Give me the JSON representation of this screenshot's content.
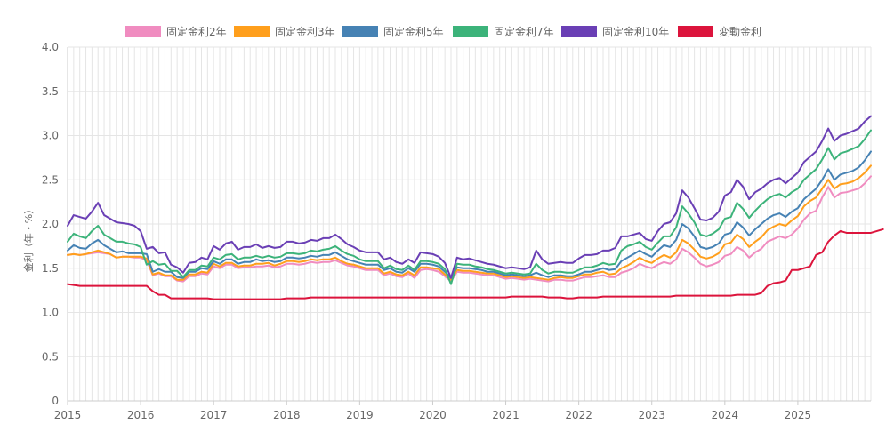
{
  "chart_data": {
    "type": "line",
    "title": "",
    "xlabel": "",
    "ylabel": "金利（年・%）",
    "ylim": [
      0,
      4.0
    ],
    "yticks": [
      "0",
      "0.5",
      "1.0",
      "1.5",
      "2.0",
      "2.5",
      "3.0",
      "3.5",
      "4.0"
    ],
    "xticks": [
      "2015",
      "2016",
      "2017",
      "2018",
      "2019",
      "2020",
      "2021",
      "2022",
      "2023",
      "2024",
      "2025"
    ],
    "x_start": "2015-01",
    "interval": "monthly",
    "grid": true,
    "legend_position": "top",
    "series": [
      {
        "name": "固定金利2年",
        "color": "#f08cc0",
        "values": [
          1.65,
          1.66,
          1.65,
          1.66,
          1.67,
          1.68,
          1.67,
          1.66,
          1.62,
          1.63,
          1.63,
          1.62,
          1.62,
          1.59,
          1.42,
          1.44,
          1.41,
          1.41,
          1.36,
          1.35,
          1.41,
          1.41,
          1.44,
          1.43,
          1.52,
          1.5,
          1.54,
          1.54,
          1.5,
          1.51,
          1.51,
          1.52,
          1.52,
          1.53,
          1.51,
          1.52,
          1.55,
          1.55,
          1.54,
          1.55,
          1.57,
          1.56,
          1.57,
          1.57,
          1.59,
          1.56,
          1.53,
          1.52,
          1.5,
          1.48,
          1.48,
          1.48,
          1.42,
          1.44,
          1.41,
          1.4,
          1.44,
          1.39,
          1.48,
          1.49,
          1.48,
          1.46,
          1.41,
          1.35,
          1.46,
          1.45,
          1.45,
          1.44,
          1.43,
          1.42,
          1.42,
          1.4,
          1.38,
          1.39,
          1.38,
          1.37,
          1.38,
          1.37,
          1.36,
          1.35,
          1.37,
          1.37,
          1.36,
          1.36,
          1.38,
          1.4,
          1.4,
          1.41,
          1.42,
          1.4,
          1.4,
          1.45,
          1.47,
          1.5,
          1.55,
          1.52,
          1.5,
          1.54,
          1.57,
          1.55,
          1.6,
          1.72,
          1.68,
          1.62,
          1.55,
          1.52,
          1.54,
          1.57,
          1.64,
          1.66,
          1.74,
          1.7,
          1.62,
          1.68,
          1.72,
          1.8,
          1.83,
          1.86,
          1.84,
          1.88,
          1.95,
          2.05,
          2.12,
          2.15,
          2.3,
          2.42,
          2.3,
          2.35,
          2.36,
          2.38,
          2.4,
          2.46,
          2.54
        ]
      },
      {
        "name": "固定金利3年",
        "color": "#ff9f1c",
        "values": [
          1.65,
          1.66,
          1.65,
          1.66,
          1.68,
          1.7,
          1.68,
          1.66,
          1.62,
          1.63,
          1.63,
          1.63,
          1.63,
          1.61,
          1.43,
          1.45,
          1.42,
          1.42,
          1.37,
          1.37,
          1.43,
          1.43,
          1.46,
          1.45,
          1.55,
          1.52,
          1.56,
          1.56,
          1.52,
          1.53,
          1.53,
          1.55,
          1.55,
          1.56,
          1.53,
          1.55,
          1.58,
          1.58,
          1.57,
          1.58,
          1.6,
          1.59,
          1.6,
          1.6,
          1.62,
          1.58,
          1.55,
          1.54,
          1.52,
          1.5,
          1.5,
          1.5,
          1.44,
          1.46,
          1.43,
          1.42,
          1.46,
          1.42,
          1.51,
          1.51,
          1.5,
          1.49,
          1.43,
          1.37,
          1.48,
          1.47,
          1.47,
          1.46,
          1.45,
          1.44,
          1.44,
          1.42,
          1.4,
          1.41,
          1.4,
          1.39,
          1.4,
          1.39,
          1.38,
          1.37,
          1.39,
          1.4,
          1.39,
          1.39,
          1.41,
          1.43,
          1.43,
          1.45,
          1.46,
          1.43,
          1.44,
          1.5,
          1.53,
          1.57,
          1.62,
          1.58,
          1.56,
          1.61,
          1.65,
          1.62,
          1.68,
          1.82,
          1.78,
          1.71,
          1.63,
          1.61,
          1.63,
          1.67,
          1.77,
          1.79,
          1.88,
          1.83,
          1.74,
          1.8,
          1.85,
          1.93,
          1.97,
          2.0,
          1.98,
          2.04,
          2.09,
          2.2,
          2.26,
          2.3,
          2.4,
          2.5,
          2.4,
          2.45,
          2.46,
          2.48,
          2.52,
          2.58,
          2.66
        ]
      },
      {
        "name": "固定金利5年",
        "color": "#4682b4",
        "values": [
          1.7,
          1.76,
          1.73,
          1.72,
          1.78,
          1.82,
          1.76,
          1.72,
          1.68,
          1.69,
          1.67,
          1.67,
          1.67,
          1.66,
          1.46,
          1.49,
          1.46,
          1.46,
          1.4,
          1.39,
          1.46,
          1.46,
          1.5,
          1.49,
          1.58,
          1.55,
          1.6,
          1.6,
          1.55,
          1.57,
          1.57,
          1.6,
          1.58,
          1.59,
          1.57,
          1.58,
          1.62,
          1.62,
          1.61,
          1.62,
          1.64,
          1.63,
          1.65,
          1.65,
          1.68,
          1.64,
          1.6,
          1.58,
          1.56,
          1.54,
          1.54,
          1.54,
          1.48,
          1.5,
          1.46,
          1.45,
          1.5,
          1.46,
          1.55,
          1.55,
          1.54,
          1.52,
          1.46,
          1.39,
          1.51,
          1.5,
          1.5,
          1.49,
          1.48,
          1.46,
          1.46,
          1.44,
          1.42,
          1.43,
          1.42,
          1.41,
          1.42,
          1.45,
          1.42,
          1.4,
          1.42,
          1.42,
          1.41,
          1.41,
          1.43,
          1.46,
          1.46,
          1.48,
          1.5,
          1.48,
          1.49,
          1.58,
          1.62,
          1.66,
          1.7,
          1.66,
          1.63,
          1.7,
          1.76,
          1.74,
          1.82,
          2.0,
          1.95,
          1.86,
          1.74,
          1.72,
          1.74,
          1.78,
          1.88,
          1.9,
          2.02,
          1.96,
          1.87,
          1.94,
          2.0,
          2.06,
          2.1,
          2.12,
          2.08,
          2.14,
          2.18,
          2.28,
          2.34,
          2.4,
          2.5,
          2.62,
          2.5,
          2.56,
          2.58,
          2.6,
          2.64,
          2.72,
          2.82
        ]
      },
      {
        "name": "固定金利7年",
        "color": "#3cb37a",
        "values": [
          1.8,
          1.89,
          1.86,
          1.84,
          1.92,
          1.98,
          1.88,
          1.84,
          1.8,
          1.8,
          1.78,
          1.77,
          1.74,
          1.54,
          1.58,
          1.54,
          1.55,
          1.47,
          1.47,
          1.4,
          1.48,
          1.48,
          1.53,
          1.52,
          1.62,
          1.6,
          1.65,
          1.66,
          1.6,
          1.62,
          1.62,
          1.64,
          1.62,
          1.64,
          1.62,
          1.63,
          1.67,
          1.67,
          1.66,
          1.67,
          1.7,
          1.69,
          1.71,
          1.72,
          1.75,
          1.7,
          1.66,
          1.64,
          1.6,
          1.58,
          1.58,
          1.58,
          1.5,
          1.53,
          1.49,
          1.48,
          1.53,
          1.48,
          1.58,
          1.58,
          1.57,
          1.55,
          1.49,
          1.32,
          1.55,
          1.54,
          1.54,
          1.52,
          1.51,
          1.49,
          1.48,
          1.46,
          1.44,
          1.45,
          1.44,
          1.43,
          1.44,
          1.55,
          1.48,
          1.44,
          1.46,
          1.46,
          1.45,
          1.45,
          1.48,
          1.51,
          1.51,
          1.53,
          1.56,
          1.54,
          1.55,
          1.7,
          1.75,
          1.77,
          1.8,
          1.74,
          1.71,
          1.79,
          1.86,
          1.86,
          1.96,
          2.2,
          2.12,
          2.02,
          1.88,
          1.86,
          1.89,
          1.94,
          2.06,
          2.08,
          2.24,
          2.17,
          2.07,
          2.15,
          2.22,
          2.28,
          2.32,
          2.34,
          2.3,
          2.36,
          2.4,
          2.5,
          2.56,
          2.62,
          2.73,
          2.86,
          2.73,
          2.8,
          2.82,
          2.85,
          2.88,
          2.96,
          3.06
        ]
      },
      {
        "name": "固定金利10年",
        "color": "#6a3fb5",
        "values": [
          1.98,
          2.1,
          2.08,
          2.06,
          2.14,
          2.24,
          2.1,
          2.06,
          2.02,
          2.01,
          2.0,
          1.98,
          1.92,
          1.72,
          1.74,
          1.67,
          1.68,
          1.54,
          1.51,
          1.45,
          1.56,
          1.57,
          1.62,
          1.6,
          1.75,
          1.71,
          1.78,
          1.8,
          1.71,
          1.74,
          1.74,
          1.77,
          1.73,
          1.75,
          1.73,
          1.74,
          1.8,
          1.8,
          1.78,
          1.79,
          1.82,
          1.81,
          1.84,
          1.84,
          1.88,
          1.83,
          1.77,
          1.74,
          1.7,
          1.68,
          1.68,
          1.68,
          1.6,
          1.62,
          1.57,
          1.55,
          1.6,
          1.56,
          1.68,
          1.67,
          1.66,
          1.63,
          1.56,
          1.39,
          1.62,
          1.6,
          1.61,
          1.59,
          1.57,
          1.55,
          1.54,
          1.52,
          1.5,
          1.51,
          1.5,
          1.49,
          1.51,
          1.7,
          1.6,
          1.55,
          1.56,
          1.57,
          1.56,
          1.56,
          1.61,
          1.65,
          1.65,
          1.66,
          1.7,
          1.7,
          1.73,
          1.86,
          1.86,
          1.88,
          1.9,
          1.83,
          1.81,
          1.92,
          2.0,
          2.02,
          2.12,
          2.38,
          2.3,
          2.18,
          2.05,
          2.04,
          2.07,
          2.14,
          2.32,
          2.36,
          2.5,
          2.42,
          2.28,
          2.36,
          2.4,
          2.46,
          2.5,
          2.52,
          2.46,
          2.52,
          2.58,
          2.7,
          2.76,
          2.82,
          2.94,
          3.08,
          2.94,
          3.0,
          3.02,
          3.05,
          3.08,
          3.16,
          3.22
        ]
      },
      {
        "name": "変動金利",
        "color": "#dc143c",
        "values": [
          1.32,
          1.31,
          1.3,
          1.3,
          1.3,
          1.3,
          1.3,
          1.3,
          1.3,
          1.3,
          1.3,
          1.3,
          1.3,
          1.3,
          1.24,
          1.2,
          1.2,
          1.16,
          1.16,
          1.16,
          1.16,
          1.16,
          1.16,
          1.16,
          1.15,
          1.15,
          1.15,
          1.15,
          1.15,
          1.15,
          1.15,
          1.15,
          1.15,
          1.15,
          1.15,
          1.15,
          1.16,
          1.16,
          1.16,
          1.16,
          1.17,
          1.17,
          1.17,
          1.17,
          1.17,
          1.17,
          1.17,
          1.17,
          1.17,
          1.17,
          1.17,
          1.17,
          1.17,
          1.17,
          1.17,
          1.17,
          1.17,
          1.17,
          1.17,
          1.17,
          1.17,
          1.17,
          1.17,
          1.17,
          1.17,
          1.17,
          1.17,
          1.17,
          1.17,
          1.17,
          1.17,
          1.17,
          1.17,
          1.18,
          1.18,
          1.18,
          1.18,
          1.18,
          1.18,
          1.17,
          1.17,
          1.17,
          1.16,
          1.16,
          1.17,
          1.17,
          1.17,
          1.17,
          1.18,
          1.18,
          1.18,
          1.18,
          1.18,
          1.18,
          1.18,
          1.18,
          1.18,
          1.18,
          1.18,
          1.18,
          1.19,
          1.19,
          1.19,
          1.19,
          1.19,
          1.19,
          1.19,
          1.19,
          1.19,
          1.19,
          1.2,
          1.2,
          1.2,
          1.2,
          1.22,
          1.3,
          1.33,
          1.34,
          1.36,
          1.48,
          1.48,
          1.5,
          1.52,
          1.65,
          1.68,
          1.8,
          1.87,
          1.92,
          1.9,
          1.9,
          1.9,
          1.9,
          1.9,
          1.92,
          1.94
        ]
      }
    ]
  }
}
